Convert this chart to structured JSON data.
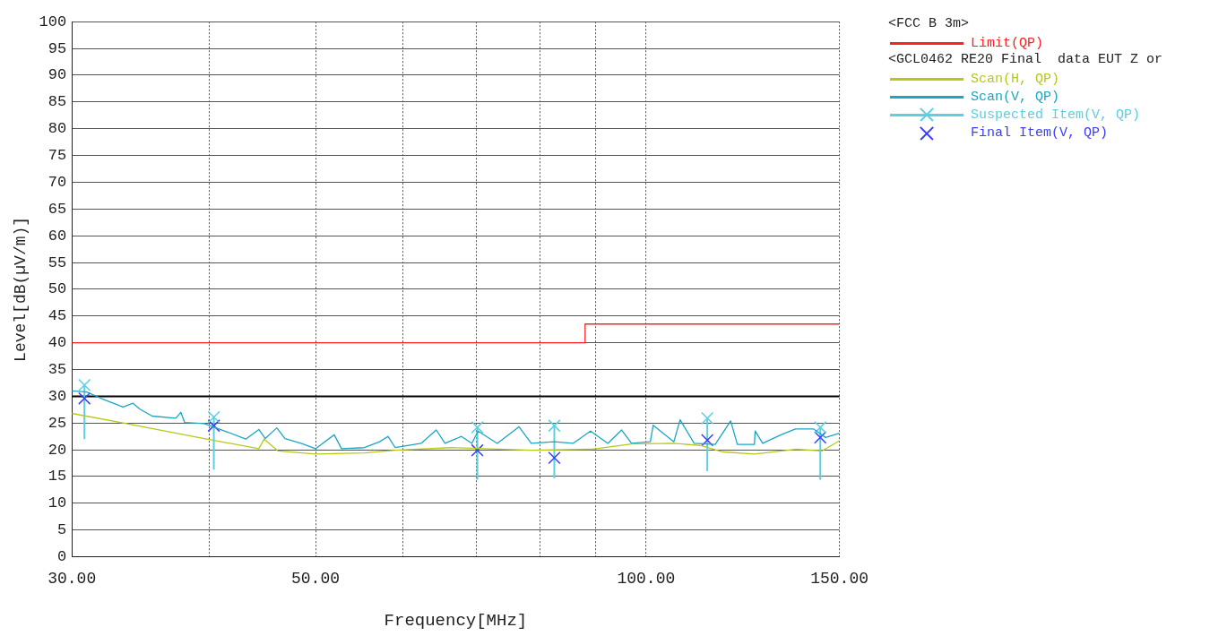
{
  "chart_data": {
    "type": "line",
    "xlabel": "Frequency[MHz]",
    "ylabel": "Level[dB(µV/m)]",
    "annotations": [
      "<FCC B 3m>",
      "<GCL0462 RE20 Final  data EUT Z or"
    ],
    "log": "x",
    "xlim": [
      30,
      150
    ],
    "xticks": [
      {
        "value": 30,
        "label": "30.00"
      },
      {
        "value": 40,
        "label": null
      },
      {
        "value": 50,
        "label": "50.00"
      },
      {
        "value": 60,
        "label": null
      },
      {
        "value": 70,
        "label": null
      },
      {
        "value": 80,
        "label": null
      },
      {
        "value": 90,
        "label": null
      },
      {
        "value": 100,
        "label": "100.00"
      },
      {
        "value": 150,
        "label": "150.00"
      }
    ],
    "ylim": [
      0,
      100
    ],
    "yticks": [
      0,
      5,
      10,
      15,
      20,
      25,
      30,
      35,
      40,
      45,
      50,
      55,
      60,
      65,
      70,
      75,
      80,
      85,
      90,
      95,
      100
    ],
    "grid": true,
    "legend": "right",
    "ref_lines": [
      {
        "axis": "y",
        "value": 30,
        "color": "#000000"
      }
    ],
    "series": [
      {
        "name": "Limit(QP)",
        "type": "step",
        "color": "#ff2020",
        "marker": "none",
        "x": [
          30,
          88,
          150
        ],
        "values": [
          40,
          43.5,
          43.5
        ]
      },
      {
        "name": "Scan(H, QP)",
        "color": "#b8c81a",
        "marker": "none",
        "x": [
          30,
          33.8,
          39.6,
          44.4,
          44.9,
          46.2,
          50,
          55.4,
          59.1,
          66.4,
          69.4,
          78.6,
          89.1,
          97,
          106,
          112.2,
          117.5,
          125.5,
          136.8,
          144.7,
          150
        ],
        "values": [
          26.8,
          24.8,
          22.1,
          20.2,
          22.0,
          19.8,
          19.2,
          19.4,
          19.9,
          20.4,
          20.3,
          19.9,
          20.1,
          21.1,
          21.2,
          20.8,
          19.6,
          19.2,
          20.1,
          19.8,
          21.7
        ]
      },
      {
        "name": "Scan(V, QP)",
        "color": "#1aa6c4",
        "marker": "none",
        "x": [
          30,
          30.96,
          31.9,
          33.4,
          34.1,
          34.6,
          35.5,
          37.3,
          37.7,
          38.0,
          39.6,
          41.1,
          43.2,
          44.4,
          45.0,
          46.1,
          46.9,
          48.5,
          50.0,
          52.0,
          52.8,
          55.4,
          57.2,
          58.2,
          59.1,
          62.4,
          64.4,
          65.6,
          67.9,
          69.4,
          70.3,
          73.2,
          76.6,
          78.6,
          82.5,
          85.8,
          89.0,
          92.3,
          95.0,
          97.0,
          100.9,
          101.5,
          106.0,
          107.4,
          110.6,
          115.6,
          119.4,
          121.1,
          125.5,
          125.7,
          127.7,
          132.7,
          136.8,
          142.0,
          145.7,
          150
        ],
        "values": [
          31.0,
          30.8,
          29.6,
          28.0,
          28.7,
          27.6,
          26.3,
          25.9,
          27.0,
          25.1,
          24.9,
          23.7,
          22.0,
          23.8,
          22.1,
          24.1,
          22.1,
          21.2,
          20.2,
          22.8,
          20.2,
          20.4,
          21.5,
          22.5,
          20.4,
          21.2,
          23.7,
          21.2,
          22.5,
          21.2,
          23.5,
          21.2,
          24.3,
          21.2,
          21.5,
          21.2,
          23.5,
          21.2,
          23.7,
          21.2,
          21.5,
          24.6,
          21.5,
          25.6,
          21.2,
          21.0,
          25.4,
          21.0,
          21.0,
          23.5,
          21.2,
          22.8,
          23.9,
          23.9,
          22.3,
          23.1
        ]
      },
      {
        "name": "Suspected Item(V, QP)",
        "type": "scatter",
        "color": "#5ccfe0",
        "marker": "cross",
        "x": [
          30.8,
          40.4,
          70.2,
          82.5,
          113.7,
          144.1
        ],
        "values": [
          32.1,
          26.1,
          24.2,
          24.5,
          25.9,
          24.2
        ],
        "errors": [
          [
            22.0,
            32.1
          ],
          [
            16.3,
            26.1
          ],
          [
            14.4,
            24.2
          ],
          [
            14.7,
            24.5
          ],
          [
            16.0,
            25.9
          ],
          [
            14.4,
            24.2
          ]
        ]
      },
      {
        "name": "Final Item(V, QP)",
        "type": "scatter",
        "color": "#3c3cff",
        "marker": "cross",
        "x": [
          30.8,
          40.4,
          70.2,
          82.5,
          113.7,
          144.1
        ],
        "values": [
          29.6,
          24.5,
          19.9,
          18.5,
          21.8,
          22.3
        ]
      }
    ]
  }
}
